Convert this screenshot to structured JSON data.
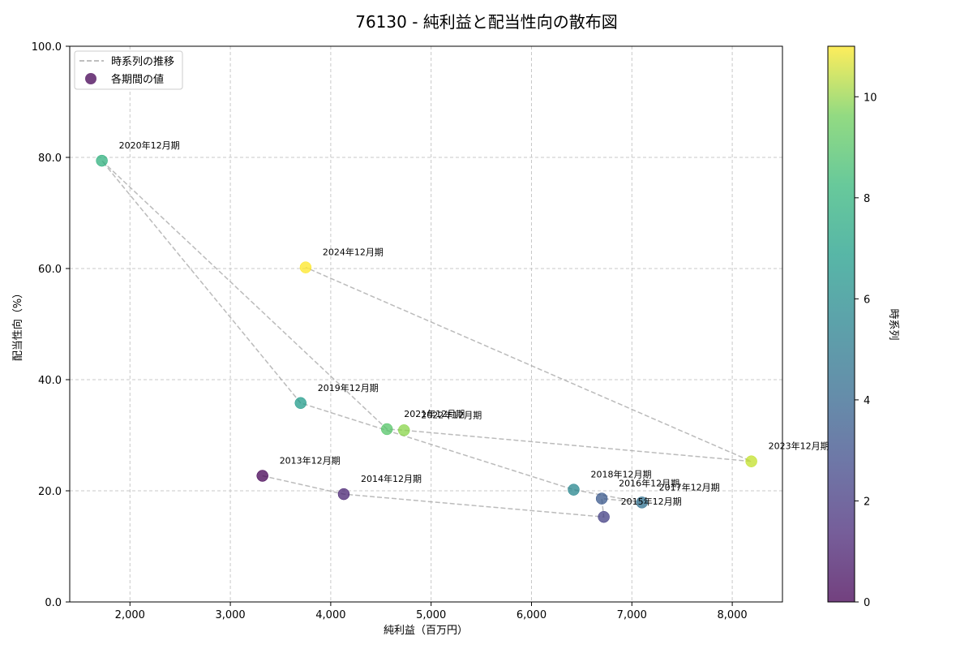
{
  "chart_data": {
    "type": "scatter",
    "title": "76130 - 純利益と配当性向の散布図",
    "xlabel": "純利益（百万円）",
    "ylabel": "配当性向（%）",
    "xlim": [
      1400,
      8500
    ],
    "ylim": [
      0,
      100
    ],
    "xticks": [
      2000,
      3000,
      4000,
      5000,
      6000,
      7000,
      8000
    ],
    "xtick_labels": [
      "2,000",
      "3,000",
      "4,000",
      "5,000",
      "6,000",
      "7,000",
      "8,000"
    ],
    "yticks": [
      0,
      20,
      40,
      60,
      80,
      100
    ],
    "ytick_labels": [
      "0.0",
      "20.0",
      "40.0",
      "60.0",
      "80.0",
      "100.0"
    ],
    "grid": true,
    "legend": {
      "placement": "top-left",
      "entries": [
        {
          "label": "時系列の推移",
          "kind": "dashed-line"
        },
        {
          "label": "各期間の値",
          "kind": "marker"
        }
      ]
    },
    "colorbar": {
      "label": "時系列",
      "range": [
        0,
        11
      ],
      "ticks": [
        0,
        2,
        4,
        6,
        8,
        10
      ],
      "tick_labels": [
        "0",
        "2",
        "4",
        "6",
        "8",
        "10"
      ]
    },
    "points": [
      {
        "label": "2013年12月期",
        "x": 3320,
        "y": 22.7,
        "t": 0
      },
      {
        "label": "2014年12月期",
        "x": 4130,
        "y": 19.4,
        "t": 1
      },
      {
        "label": "2015年12月期",
        "x": 6720,
        "y": 15.3,
        "t": 2
      },
      {
        "label": "2016年12月期",
        "x": 6700,
        "y": 18.6,
        "t": 3
      },
      {
        "label": "2017年12月期",
        "x": 7100,
        "y": 17.9,
        "t": 4
      },
      {
        "label": "2018年12月期",
        "x": 6420,
        "y": 20.2,
        "t": 5
      },
      {
        "label": "2019年12月期",
        "x": 3700,
        "y": 35.8,
        "t": 6
      },
      {
        "label": "2020年12月期",
        "x": 1720,
        "y": 79.4,
        "t": 7
      },
      {
        "label": "2021年12月期",
        "x": 4560,
        "y": 31.1,
        "t": 8
      },
      {
        "label": "2022年12月期",
        "x": 4730,
        "y": 30.9,
        "t": 9
      },
      {
        "label": "2023年12月期",
        "x": 8190,
        "y": 25.3,
        "t": 10
      },
      {
        "label": "2024年12月期",
        "x": 3750,
        "y": 60.2,
        "t": 11
      }
    ]
  }
}
